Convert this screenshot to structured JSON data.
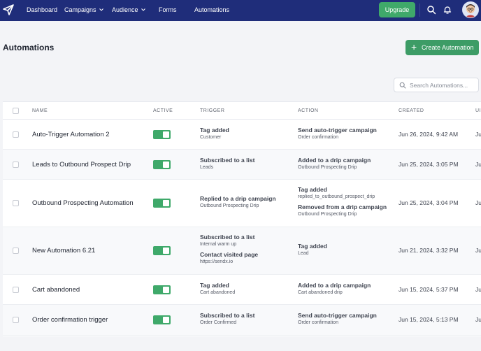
{
  "nav": {
    "items": [
      {
        "label": "Dashboard",
        "has_chevron": false
      },
      {
        "label": "Campaigns",
        "has_chevron": true
      },
      {
        "label": "Audience",
        "has_chevron": true
      },
      {
        "label": "Forms",
        "has_chevron": false
      },
      {
        "label": "Automations",
        "has_chevron": false
      }
    ],
    "upgrade_label": "Upgrade",
    "icons": [
      "paper-plane-logo-icon",
      "search-icon",
      "bell-icon",
      "avatar"
    ]
  },
  "page": {
    "title": "Automations",
    "create_button_label": "Create Automation"
  },
  "search": {
    "placeholder": "Search Automations..."
  },
  "table": {
    "headers": {
      "name": "NAME",
      "active": "ACTIVE",
      "trigger": "TRIGGER",
      "action": "ACTION",
      "created": "CREATED",
      "updated": "UI"
    },
    "rows": [
      {
        "name": "Auto-Trigger Automation 2",
        "active": true,
        "triggers": [
          {
            "title": "Tag added",
            "sub": "Customer"
          }
        ],
        "actions": [
          {
            "title": "Send auto-trigger campaign",
            "sub": "Order confirmation"
          }
        ],
        "created": "Jun 26, 2024, 9:42 AM",
        "updated": "Ju"
      },
      {
        "name": "Leads to Outbound Prospect Drip",
        "active": true,
        "triggers": [
          {
            "title": "Subscribed to a list",
            "sub": "Leads"
          }
        ],
        "actions": [
          {
            "title": "Added to a drip campaign",
            "sub": "Outbound Prospecting Drip"
          }
        ],
        "created": "Jun 25, 2024, 3:05 PM",
        "updated": "Ju"
      },
      {
        "name": "Outbound Prospecting Automation",
        "active": true,
        "triggers": [
          {
            "title": "Replied to a drip campaign",
            "sub": "Outbound Prospecting Drip"
          }
        ],
        "actions": [
          {
            "title": "Tag added",
            "sub": "replied_to_outbound_prospect_drip"
          },
          {
            "title": "Removed from a drip campaign",
            "sub": "Outbound Prospecting Drip"
          }
        ],
        "created": "Jun 25, 2024, 3:04 PM",
        "updated": "Ju"
      },
      {
        "name": "New Automation 6.21",
        "active": true,
        "triggers": [
          {
            "title": "Subscribed to a list",
            "sub": "Internal warm up"
          },
          {
            "title": "Contact visited page",
            "sub": "https://sendx.io"
          }
        ],
        "actions": [
          {
            "title": "Tag added",
            "sub": "Lead"
          }
        ],
        "created": "Jun 21, 2024, 3:32 PM",
        "updated": "Ju"
      },
      {
        "name": "Cart abandoned",
        "active": true,
        "triggers": [
          {
            "title": "Tag added",
            "sub": "Cart abandoned"
          }
        ],
        "actions": [
          {
            "title": "Added to a drip campaign",
            "sub": "Cart abandoned drip"
          }
        ],
        "created": "Jun 15, 2024, 5:37 PM",
        "updated": "Ju"
      },
      {
        "name": "Order confirmation trigger",
        "active": true,
        "triggers": [
          {
            "title": "Subscribed to a list",
            "sub": "Order Confirmed"
          }
        ],
        "actions": [
          {
            "title": "Send auto-trigger campaign",
            "sub": "Order confirmation"
          }
        ],
        "created": "Jun 15, 2024, 5:13 PM",
        "updated": "Ju"
      }
    ]
  },
  "colors": {
    "nav_bg": "#1f2d7a",
    "accent_green": "#3fa96a",
    "page_bg": "#f3f4f7"
  }
}
